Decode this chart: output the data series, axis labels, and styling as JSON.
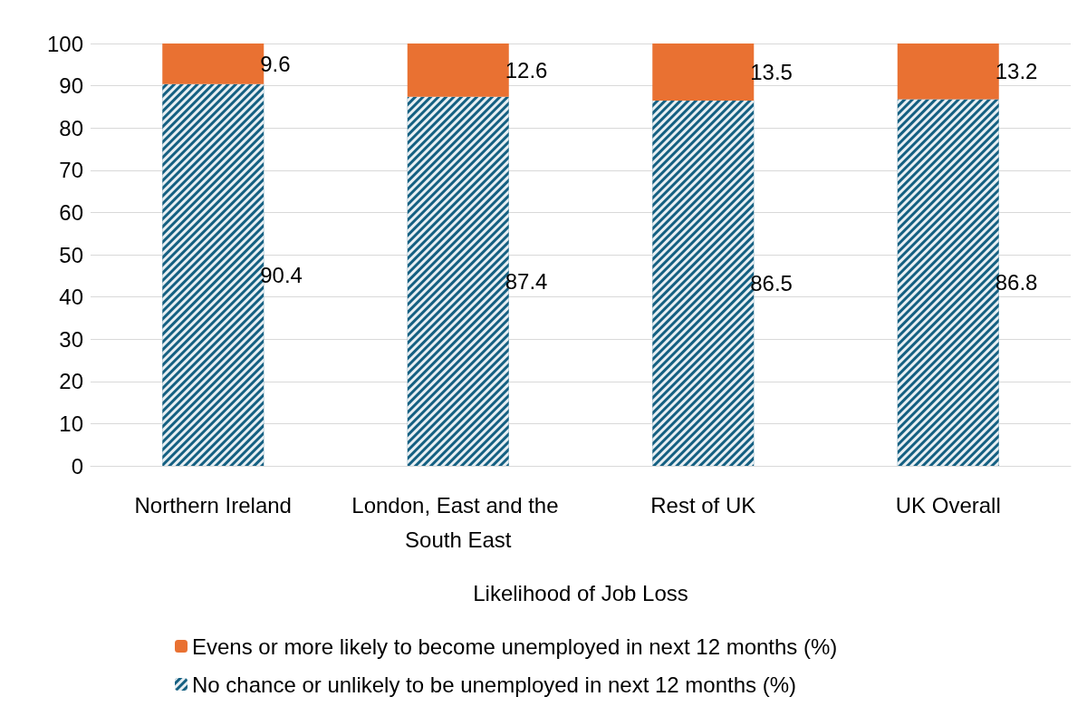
{
  "chart_data": {
    "type": "bar",
    "stacked": true,
    "xlabel": "Likelihood of Job Loss",
    "categories": [
      "Northern Ireland",
      "London, East and the South East",
      "Rest of UK",
      "UK Overall"
    ],
    "series": [
      {
        "name": "No chance or unlikely to be unemployed in next 12 months (%)",
        "color": "#156082",
        "values": [
          90.4,
          87.4,
          86.5,
          86.8
        ]
      },
      {
        "name": "Evens or more likely to become unemployed in next 12 months (%)",
        "color": "#e97132",
        "values": [
          9.6,
          12.6,
          13.5,
          13.2
        ]
      }
    ],
    "ylim": [
      0,
      100
    ],
    "yticks": [
      0,
      10,
      20,
      30,
      40,
      50,
      60,
      70,
      80,
      90,
      100
    ],
    "grid": "y",
    "legend": "bottom",
    "data_labels": true
  }
}
